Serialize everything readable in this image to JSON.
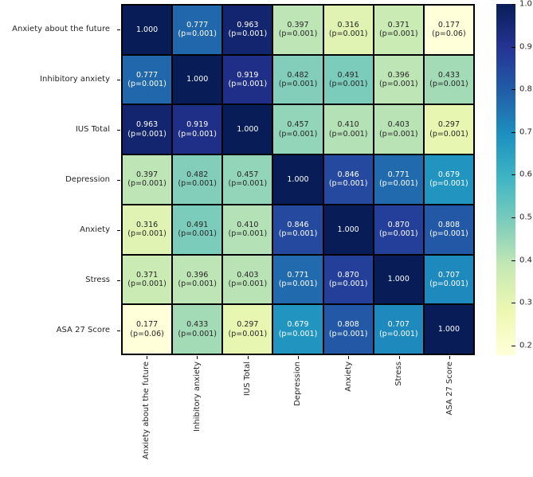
{
  "figure": {
    "description": "Correlation heatmap with significance values and colorbar"
  },
  "chart_data": {
    "type": "heatmap",
    "categories": [
      "Anxiety about the future",
      "Inhibitory anxiety",
      "IUS Total",
      "Depression",
      "Anxiety",
      "Stress",
      "ASA 27 Score"
    ],
    "matrix": [
      [
        1.0,
        0.777,
        0.963,
        0.397,
        0.316,
        0.371,
        0.177
      ],
      [
        0.777,
        1.0,
        0.919,
        0.482,
        0.491,
        0.396,
        0.433
      ],
      [
        0.963,
        0.919,
        1.0,
        0.457,
        0.41,
        0.403,
        0.297
      ],
      [
        0.397,
        0.482,
        0.457,
        1.0,
        0.846,
        0.771,
        0.679
      ],
      [
        0.316,
        0.491,
        0.41,
        0.846,
        1.0,
        0.87,
        0.808
      ],
      [
        0.371,
        0.396,
        0.403,
        0.771,
        0.87,
        1.0,
        0.707
      ],
      [
        0.177,
        0.433,
        0.297,
        0.679,
        0.808,
        0.707,
        1.0
      ]
    ],
    "p_matrix": [
      [
        null,
        "(p=0.001)",
        "(p=0.001)",
        "(p=0.001)",
        "(p=0.001)",
        "(p=0.001)",
        "(p=0.06)"
      ],
      [
        "(p=0.001)",
        null,
        "(p=0.001)",
        "(p=0.001)",
        "(p=0.001)",
        "(p=0.001)",
        "(p=0.001)"
      ],
      [
        "(p=0.001)",
        "(p=0.001)",
        null,
        "(p=0.001)",
        "(p=0.001)",
        "(p=0.001)",
        "(p=0.001)"
      ],
      [
        "(p=0.001)",
        "(p=0.001)",
        "(p=0.001)",
        null,
        "(p=0.001)",
        "(p=0.001)",
        "(p=0.001)"
      ],
      [
        "(p=0.001)",
        "(p=0.001)",
        "(p=0.001)",
        "(p=0.001)",
        null,
        "(p=0.001)",
        "(p=0.001)"
      ],
      [
        "(p=0.001)",
        "(p=0.001)",
        "(p=0.001)",
        "(p=0.001)",
        "(p=0.001)",
        null,
        "(p=0.001)"
      ],
      [
        "(p=0.06)",
        "(p=0.001)",
        "(p=0.001)",
        "(p=0.001)",
        "(p=0.001)",
        "(p=0.001)",
        null
      ]
    ],
    "colorbar": {
      "ticks": [
        1.0,
        0.9,
        0.8,
        0.7,
        0.6,
        0.5,
        0.4,
        0.3,
        0.2
      ],
      "vmin": 0.177,
      "vmax": 1.0
    },
    "colormap": {
      "name": "YlGnBu",
      "anchors": [
        "#ffffd9",
        "#edf8b1",
        "#c7e9b4",
        "#7fcdbb",
        "#41b6c4",
        "#1d91c0",
        "#225ea8",
        "#253494",
        "#081d58"
      ]
    },
    "annotation_colors": {
      "dark_text": "#262626",
      "light_text": "#ffffff"
    },
    "grid_line_color": "#000000",
    "legend_position": "right"
  }
}
